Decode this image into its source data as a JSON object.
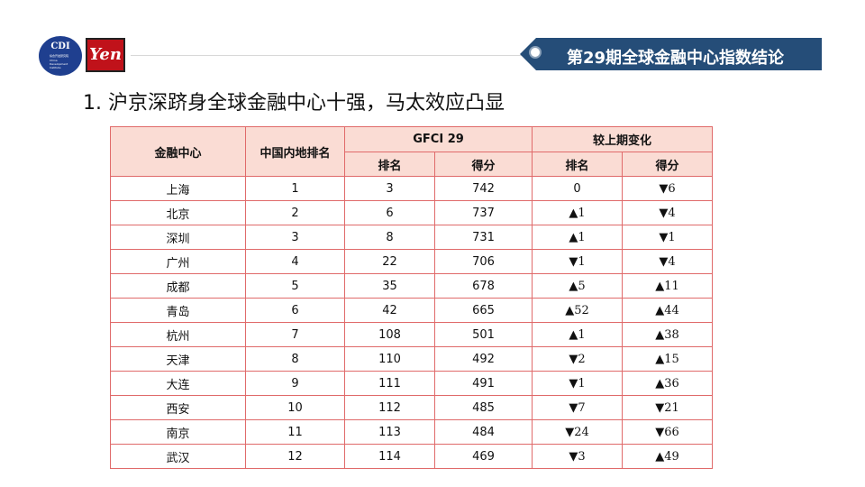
{
  "header": {
    "logo_cdi": {
      "text": "CDI",
      "lines": [
        "综合开发研究院",
        "China",
        "Development",
        "Institute"
      ]
    },
    "logo_yen": {
      "text": "Yen"
    },
    "banner_title": "第29期全球金融中心指数结论",
    "colors": {
      "banner": "#254d78",
      "table_header": "#fadcd4",
      "table_border": "#e06a6a",
      "up": "#1a9a3a",
      "down": "#e01010"
    }
  },
  "main": {
    "heading": "1. 沪京深跻身全球金融中心十强，马太效应凸显"
  },
  "table": {
    "col_center": "金融中心",
    "col_mainland_rank": "中国内地排名",
    "group_gfci": "GFCI 29",
    "group_change": "较上期变化",
    "sub_rank": "排名",
    "sub_score": "得分",
    "rows": [
      {
        "center": "上海",
        "mainland": "1",
        "rank": "3",
        "score": "742",
        "rank_change": "0",
        "score_change": "▼6",
        "rank_dir": "zero",
        "score_dir": "down"
      },
      {
        "center": "北京",
        "mainland": "2",
        "rank": "6",
        "score": "737",
        "rank_change": "▲1",
        "score_change": "▼4",
        "rank_dir": "up",
        "score_dir": "down"
      },
      {
        "center": "深圳",
        "mainland": "3",
        "rank": "8",
        "score": "731",
        "rank_change": "▲1",
        "score_change": "▼1",
        "rank_dir": "up",
        "score_dir": "down"
      },
      {
        "center": "广州",
        "mainland": "4",
        "rank": "22",
        "score": "706",
        "rank_change": "▼1",
        "score_change": "▼4",
        "rank_dir": "down",
        "score_dir": "down"
      },
      {
        "center": "成都",
        "mainland": "5",
        "rank": "35",
        "score": "678",
        "rank_change": "▲5",
        "score_change": "▲11",
        "rank_dir": "up",
        "score_dir": "up"
      },
      {
        "center": "青岛",
        "mainland": "6",
        "rank": "42",
        "score": "665",
        "rank_change": "▲52",
        "score_change": "▲44",
        "rank_dir": "up",
        "score_dir": "up"
      },
      {
        "center": "杭州",
        "mainland": "7",
        "rank": "108",
        "score": "501",
        "rank_change": "▲1",
        "score_change": "▲38",
        "rank_dir": "up",
        "score_dir": "up"
      },
      {
        "center": "天津",
        "mainland": "8",
        "rank": "110",
        "score": "492",
        "rank_change": "▼2",
        "score_change": "▲15",
        "rank_dir": "down",
        "score_dir": "up"
      },
      {
        "center": "大连",
        "mainland": "9",
        "rank": "111",
        "score": "491",
        "rank_change": "▼1",
        "score_change": "▲36",
        "rank_dir": "down",
        "score_dir": "up"
      },
      {
        "center": "西安",
        "mainland": "10",
        "rank": "112",
        "score": "485",
        "rank_change": "▼7",
        "score_change": "▼21",
        "rank_dir": "down",
        "score_dir": "down"
      },
      {
        "center": "南京",
        "mainland": "11",
        "rank": "113",
        "score": "484",
        "rank_change": "▼24",
        "score_change": "▼66",
        "rank_dir": "down",
        "score_dir": "down"
      },
      {
        "center": "武汉",
        "mainland": "12",
        "rank": "114",
        "score": "469",
        "rank_change": "▼3",
        "score_change": "▲49",
        "rank_dir": "down",
        "score_dir": "up"
      }
    ]
  }
}
